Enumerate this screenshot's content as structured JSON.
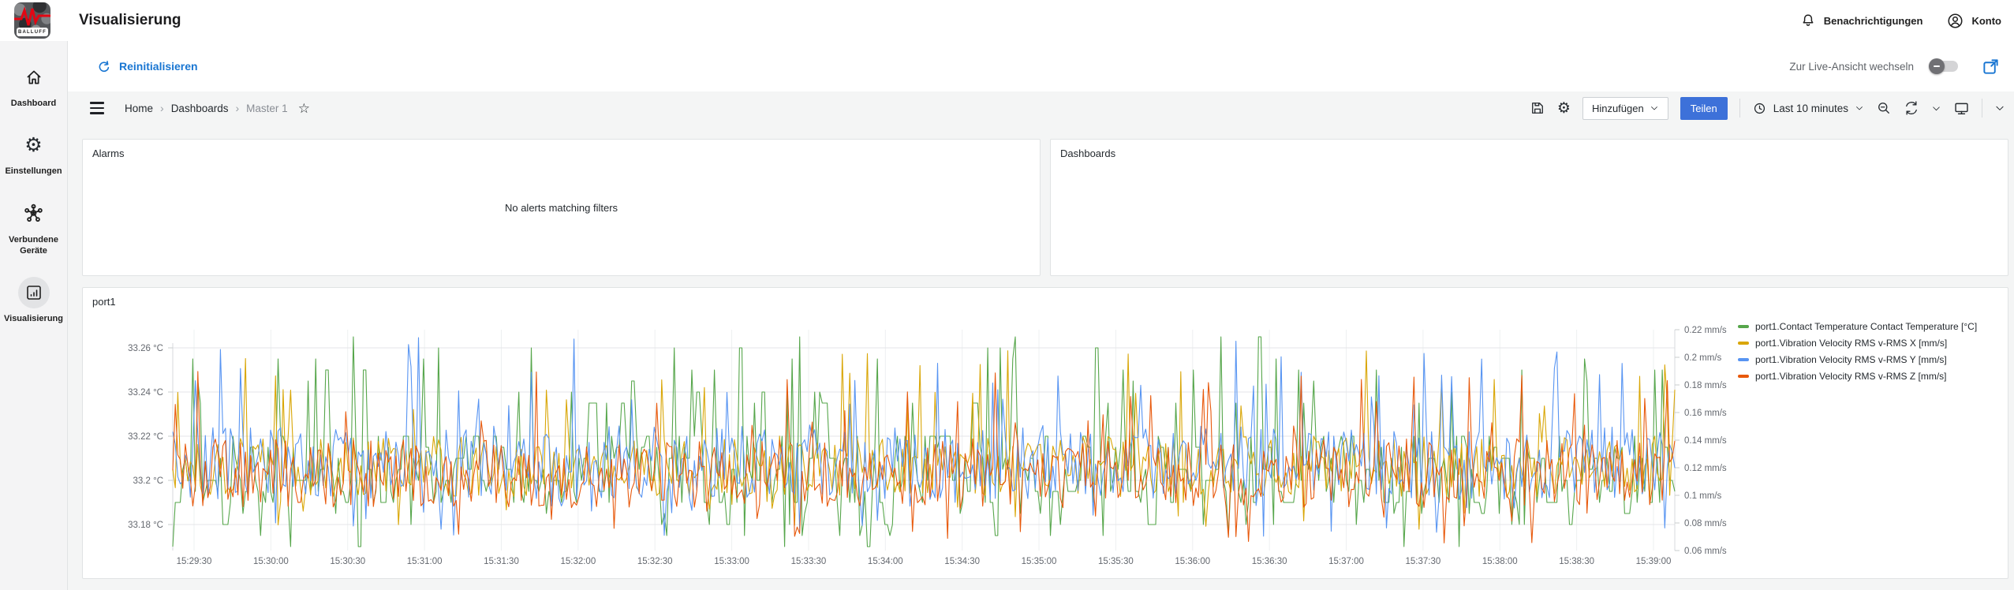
{
  "header": {
    "title": "Visualisierung",
    "brand": "BALLUFF",
    "notifications_label": "Benachrichtigungen",
    "account_label": "Konto"
  },
  "sidebar": {
    "items": [
      {
        "label": "Dashboard",
        "icon": "home-icon",
        "active": false
      },
      {
        "label": "Einstellungen",
        "icon": "gear-icon",
        "active": false
      },
      {
        "label": "Verbundene Geräte",
        "icon": "network-icon",
        "active": false
      },
      {
        "label": "Visualisierung",
        "icon": "chart-icon",
        "active": true
      }
    ]
  },
  "subheader": {
    "reinit_label": "Reinitialisieren",
    "live_toggle_label": "Zur Live-Ansicht wechseln",
    "live_toggle_on": false
  },
  "toolbar": {
    "breadcrumb": [
      "Home",
      "Dashboards",
      "Master 1"
    ],
    "add_label": "Hinzufügen",
    "share_label": "Teilen",
    "time_range": "Last 10 minutes",
    "icons": [
      "save-icon",
      "gear-icon",
      "clock-icon",
      "zoom-out-icon",
      "refresh-icon",
      "chevron-down-icon",
      "tv-icon",
      "chevron-down-icon"
    ]
  },
  "panels": {
    "alarms": {
      "title": "Alarms",
      "empty_text": "No alerts matching filters"
    },
    "dashboards": {
      "title": "Dashboards"
    },
    "port1": {
      "title": "port1"
    }
  },
  "chart_data": {
    "type": "line",
    "title": "port1",
    "grid": true,
    "legend_position": "right",
    "x_ticks": [
      "15:29:30",
      "15:30:00",
      "15:30:30",
      "15:31:00",
      "15:31:30",
      "15:32:00",
      "15:32:30",
      "15:33:00",
      "15:33:30",
      "15:34:00",
      "15:34:30",
      "15:35:00",
      "15:35:30",
      "15:36:00",
      "15:36:30",
      "15:37:00",
      "15:37:30",
      "15:38:00",
      "15:38:30",
      "15:39:00"
    ],
    "left_axis": {
      "unit": "°C",
      "range": [
        33.18,
        33.26
      ],
      "ticks": [
        "33.26 °C",
        "33.24 °C",
        "33.22 °C",
        "33.2 °C",
        "33.18 °C"
      ]
    },
    "right_axis": {
      "unit": "mm/s",
      "range": [
        0.06,
        0.22
      ],
      "ticks": [
        "0.22 mm/s",
        "0.2 mm/s",
        "0.18 mm/s",
        "0.16 mm/s",
        "0.14 mm/s",
        "0.12 mm/s",
        "0.1 mm/s",
        "0.08 mm/s",
        "0.06 mm/s"
      ]
    },
    "points_per_series": 600,
    "series": [
      {
        "name": "port1.Contact Temperature Contact Temperature [°C]",
        "color": "#56A64B",
        "axis": "left",
        "mean": 33.205,
        "noise": 0.018,
        "p_high": 0.13,
        "p_low": 0.11,
        "hold": 0.22,
        "spike_high": 33.265,
        "spike_low": 33.17,
        "quantize": 0.005,
        "min": 33.17,
        "max": 33.265,
        "seed": 7
      },
      {
        "name": "port1.Vibration Velocity RMS v-RMS X [mm/s]",
        "color": "#D9A606",
        "axis": "right",
        "mean": 0.121,
        "noise": 0.022,
        "p_high": 0.06,
        "p_low": 0.05,
        "hold": 0.0,
        "spike_high": 0.205,
        "spike_low": 0.075,
        "quantize": 0,
        "min": 0.07,
        "max": 0.21,
        "seed": 13
      },
      {
        "name": "port1.Vibration Velocity RMS v-RMS Y [mm/s]",
        "color": "#5794F2",
        "axis": "right",
        "mean": 0.124,
        "noise": 0.027,
        "p_high": 0.06,
        "p_low": 0.05,
        "hold": 0.0,
        "spike_high": 0.215,
        "spike_low": 0.07,
        "quantize": 0,
        "min": 0.065,
        "max": 0.215,
        "seed": 29
      },
      {
        "name": "port1.Vibration Velocity RMS v-RMS Z [mm/s]",
        "color": "#E8590C",
        "axis": "right",
        "mean": 0.116,
        "noise": 0.025,
        "p_high": 0.05,
        "p_low": 0.05,
        "hold": 0.0,
        "spike_high": 0.19,
        "spike_low": 0.065,
        "quantize": 0,
        "min": 0.063,
        "max": 0.19,
        "seed": 47
      }
    ]
  }
}
